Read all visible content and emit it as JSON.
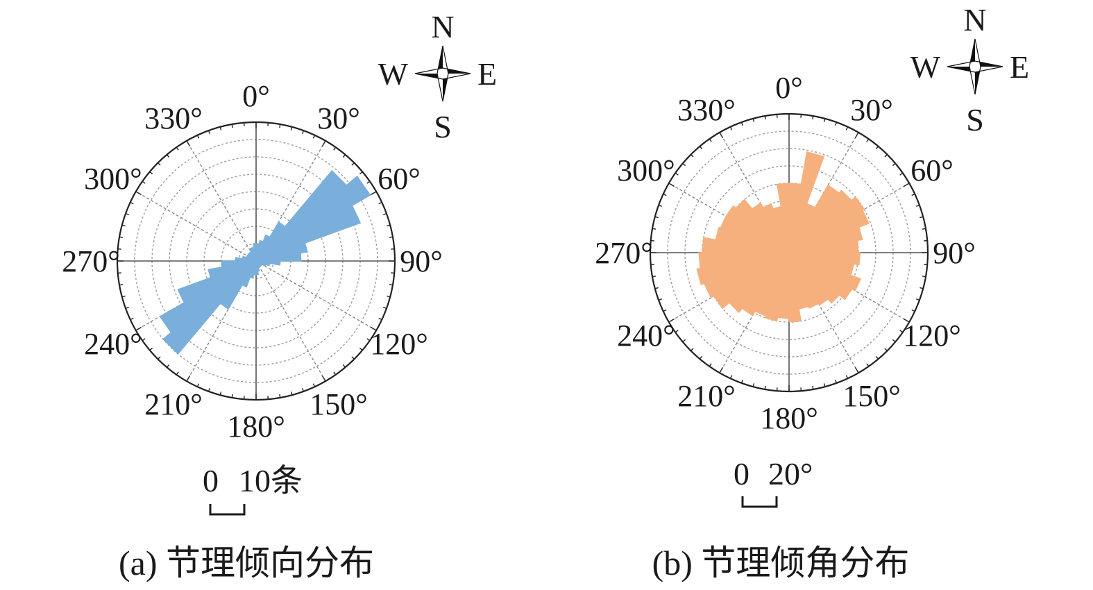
{
  "chart_data": [
    {
      "type": "rose",
      "panel_label": "(a)",
      "caption": "(a) 节理倾向分布",
      "angle_ticks": [
        "0°",
        "30°",
        "60°",
        "90°",
        "120°",
        "150°",
        "180°",
        "210°",
        "240°",
        "270°",
        "300°",
        "330°"
      ],
      "compass": {
        "N": "N",
        "E": "E",
        "S": "S",
        "W": "W"
      },
      "scale_bar": {
        "zero": "0",
        "value": "10条"
      },
      "fill_color": "#7aafdc",
      "rmax": 40,
      "ring_step": 5,
      "bin_width_deg": 10,
      "bins_deg": [
        0,
        10,
        20,
        30,
        40,
        50,
        60,
        70,
        80,
        90,
        100,
        110,
        120,
        130,
        140,
        150,
        160,
        170,
        180,
        190,
        200,
        210,
        220,
        230,
        240,
        250,
        260,
        270,
        280,
        290,
        300,
        310,
        320,
        330,
        340,
        350
      ],
      "values": [
        5,
        6,
        8,
        13,
        34,
        38,
        32,
        15,
        13,
        7,
        4,
        3,
        2,
        2,
        2,
        2,
        3,
        4,
        4,
        5,
        8,
        16,
        35,
        32,
        24,
        14,
        10,
        6,
        4,
        3,
        3,
        3,
        3,
        4,
        4,
        5
      ]
    },
    {
      "type": "rose",
      "panel_label": "(b)",
      "caption": "(b) 节理倾角分布",
      "angle_ticks": [
        "0°",
        "30°",
        "60°",
        "90°",
        "120°",
        "150°",
        "180°",
        "210°",
        "240°",
        "270°",
        "300°",
        "330°"
      ],
      "compass": {
        "N": "N",
        "E": "E",
        "S": "S",
        "W": "W"
      },
      "scale_bar": {
        "zero": "0",
        "value": "20°"
      },
      "fill_color": "#f6b07e",
      "rmax": 80,
      "ring_step": 10,
      "bin_width_deg": 10,
      "bins_deg": [
        0,
        10,
        20,
        30,
        40,
        50,
        60,
        70,
        80,
        90,
        100,
        110,
        120,
        130,
        140,
        150,
        160,
        170,
        180,
        190,
        200,
        210,
        220,
        230,
        240,
        250,
        260,
        270,
        280,
        290,
        300,
        310,
        320,
        330,
        340,
        350
      ],
      "values": [
        40,
        59,
        30,
        45,
        47,
        50,
        49,
        43,
        40,
        41,
        38,
        44,
        42,
        38,
        35,
        34,
        33,
        40,
        38,
        40,
        39,
        42,
        45,
        50,
        52,
        54,
        52,
        50,
        43,
        42,
        42,
        40,
        33,
        30,
        27,
        40
      ]
    }
  ]
}
